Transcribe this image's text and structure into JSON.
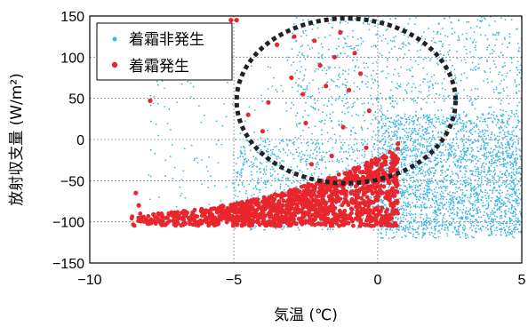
{
  "chart_data": {
    "type": "scatter",
    "xlabel": "気温 (℃)",
    "ylabel": "放射収支量 (W/m²)",
    "xlim": [
      -10,
      5
    ],
    "ylim": [
      -150,
      150
    ],
    "x_ticks": [
      "−10",
      "−5",
      "0",
      "5"
    ],
    "y_ticks": [
      "150",
      "100",
      "50",
      "0",
      "−50",
      "−100",
      "−150"
    ],
    "grid": "dashed gridlines at every tick",
    "legend_position": "top-left",
    "series": [
      {
        "name": "着霜非発生",
        "color": "#3cb4e6",
        "marker": "small dot",
        "point_groups": [
          {
            "x_range": [
              -5,
              5
            ],
            "y_range": [
              -110,
              0
            ],
            "density": "very high"
          },
          {
            "x_range": [
              0,
              5
            ],
            "y_range": [
              -120,
              30
            ],
            "density": "very high"
          },
          {
            "x_range": [
              -3,
              5
            ],
            "y_range": [
              0,
              150
            ],
            "density": "high"
          },
          {
            "x_range": [
              -8,
              -3
            ],
            "y_range": [
              -100,
              100
            ],
            "density": "low"
          }
        ]
      },
      {
        "name": "着霜発生",
        "color": "#e8262d",
        "marker": "filled circle",
        "points": [
          [
            -8.4,
            -65
          ],
          [
            -8.3,
            -80
          ],
          [
            -8.2,
            -95
          ],
          [
            -7.9,
            47
          ],
          [
            -5.1,
            145
          ],
          [
            -4.9,
            145
          ],
          [
            -4.0,
            10
          ],
          [
            -3.5,
            115
          ],
          [
            -3.0,
            75
          ],
          [
            -2.9,
            125
          ],
          [
            -2.6,
            55
          ],
          [
            -2.2,
            120
          ],
          [
            -2.0,
            90
          ],
          [
            -1.8,
            65
          ],
          [
            -1.5,
            100
          ],
          [
            -1.3,
            130
          ],
          [
            -1.0,
            60
          ],
          [
            -0.8,
            105
          ],
          [
            -0.6,
            80
          ],
          [
            -0.3,
            35
          ],
          [
            -4.5,
            30
          ],
          [
            -3.8,
            45
          ],
          [
            -2.5,
            20
          ],
          [
            -1.2,
            15
          ],
          [
            0.5,
            -30
          ],
          [
            0.7,
            -5
          ],
          [
            -2.3,
            -30
          ],
          [
            -1.6,
            -20
          ],
          [
            -0.4,
            -10
          ],
          [
            0.2,
            -45
          ]
        ],
        "dense_band": {
          "x_range": [
            -8.7,
            0.7
          ],
          "y_range": [
            -110,
            -15
          ],
          "shape": "rising toward 0 °C"
        }
      }
    ],
    "annotations": [
      {
        "type": "dotted ellipse",
        "center": [
          -1.1,
          47
        ],
        "half_widths": [
          3.8,
          100
        ],
        "color": "#222222"
      }
    ]
  }
}
